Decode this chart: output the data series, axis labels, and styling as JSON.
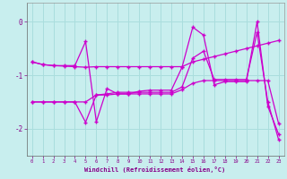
{
  "xlabel": "Windchill (Refroidissement éolien,°C)",
  "background_color": "#c8eeee",
  "grid_color": "#aadddd",
  "line_color": "#cc00cc",
  "xlim": [
    -0.5,
    23.5
  ],
  "ylim": [
    -2.5,
    0.35
  ],
  "yticks": [
    0,
    -1,
    -2
  ],
  "xticks": [
    0,
    1,
    2,
    3,
    4,
    5,
    6,
    7,
    8,
    9,
    10,
    11,
    12,
    13,
    14,
    15,
    16,
    17,
    18,
    19,
    20,
    21,
    22,
    23
  ],
  "line_a_y": [
    -0.75,
    -0.8,
    -0.82,
    -0.83,
    -0.84,
    -0.85,
    -0.84,
    -0.84,
    -0.84,
    -0.84,
    -0.84,
    -0.84,
    -0.84,
    -0.84,
    -0.84,
    -0.75,
    -0.7,
    -0.65,
    -0.6,
    -0.55,
    -0.5,
    -0.45,
    -0.4,
    -0.35
  ],
  "line_b_y": [
    -0.75,
    -0.8,
    -0.82,
    -0.82,
    -0.82,
    -0.37,
    -1.87,
    -1.25,
    -1.35,
    -1.35,
    -1.3,
    -1.28,
    -1.28,
    -1.28,
    -0.85,
    -0.1,
    -0.25,
    -1.18,
    -1.12,
    -1.12,
    -1.12,
    0.0,
    -1.58,
    -2.1
  ],
  "line_c_y": [
    -1.5,
    -1.5,
    -1.5,
    -1.5,
    -1.5,
    -1.88,
    -1.37,
    -1.35,
    -1.32,
    -1.32,
    -1.32,
    -1.32,
    -1.32,
    -1.32,
    -1.22,
    -0.68,
    -0.55,
    -1.08,
    -1.08,
    -1.08,
    -1.08,
    -0.2,
    -1.5,
    -2.2
  ],
  "line_d_y": [
    -1.5,
    -1.5,
    -1.5,
    -1.5,
    -1.5,
    -1.5,
    -1.37,
    -1.37,
    -1.35,
    -1.35,
    -1.35,
    -1.35,
    -1.35,
    -1.35,
    -1.27,
    -1.15,
    -1.1,
    -1.1,
    -1.1,
    -1.1,
    -1.1,
    -1.1,
    -1.1,
    -1.9
  ]
}
